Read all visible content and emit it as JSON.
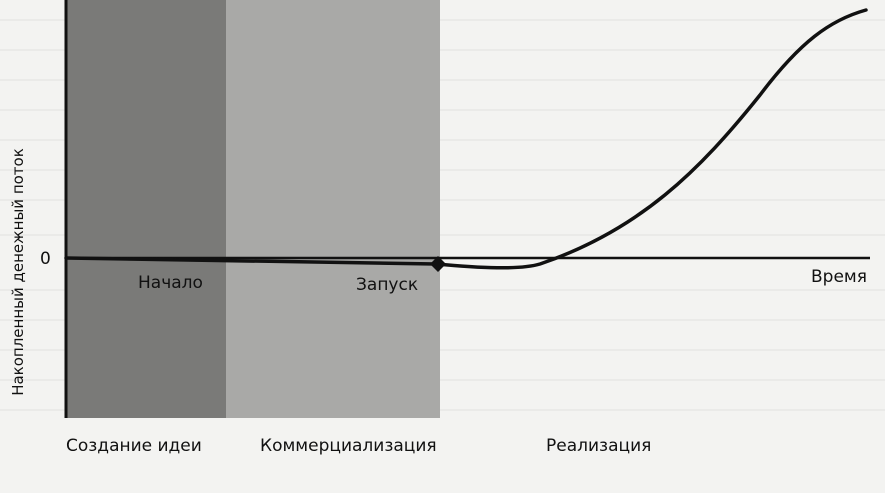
{
  "diagram": {
    "y_axis_label": "Накопленный денежный поток",
    "zero_label": "0",
    "x_axis_label": "Время",
    "milestones": {
      "start": "Начало",
      "launch": "Запуск"
    },
    "phases": [
      {
        "label": "Создание идеи",
        "color": "#7a7a78"
      },
      {
        "label": "Коммерциализация",
        "color": "#a9a9a7"
      },
      {
        "label": "Реализация",
        "color": "#f3f3f1"
      }
    ],
    "curve_color": "#111111"
  }
}
